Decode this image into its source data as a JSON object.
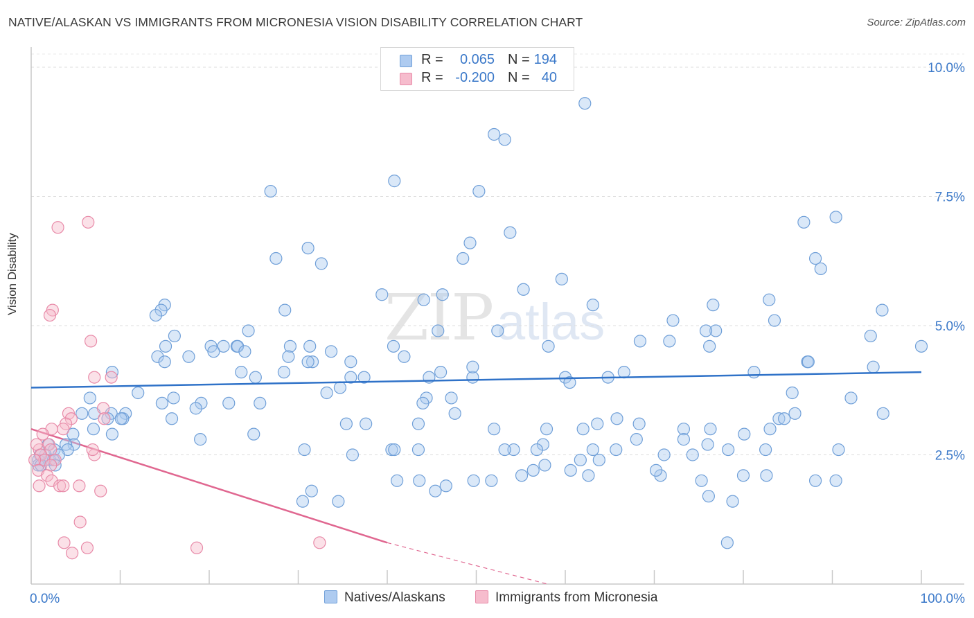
{
  "title": "NATIVE/ALASKAN VS IMMIGRANTS FROM MICRONESIA VISION DISABILITY CORRELATION CHART",
  "source": "Source: ZipAtlas.com",
  "watermark": {
    "zip": "ZIP",
    "atlas": "atlas"
  },
  "legend": {
    "rows": [
      {
        "r_label": "R =",
        "r_value": "0.065",
        "n_label": "N =",
        "n_value": "194"
      },
      {
        "r_label": "R =",
        "r_value": "-0.200",
        "n_label": "N =",
        "n_value": "40"
      }
    ]
  },
  "colors": {
    "blue_fill": "#aecbf0",
    "blue_stroke": "#6f9fd8",
    "blue_line": "#2f72c8",
    "pink_fill": "#f6bccd",
    "pink_stroke": "#e88aa8",
    "pink_line": "#e06790",
    "grid": "#dcdcdc",
    "tick_label": "#3a78c9"
  },
  "chart_data": {
    "type": "scatter",
    "title": "NATIVE/ALASKAN VS IMMIGRANTS FROM MICRONESIA VISION DISABILITY CORRELATION CHART",
    "xlabel": "",
    "ylabel": "Vision Disability",
    "xlim": [
      0,
      100
    ],
    "ylim": [
      0,
      10.5
    ],
    "x_tick_labels": [
      "0.0%",
      "100.0%"
    ],
    "y_ticks": [
      2.5,
      5.0,
      7.5,
      10.0
    ],
    "y_tick_labels": [
      "2.5%",
      "5.0%",
      "7.5%",
      "10.0%"
    ],
    "grid": "horizontal dashed",
    "legend_position": "bottom",
    "series": [
      {
        "name": "Natives/Alaskans",
        "R": 0.065,
        "N": 194,
        "trend": {
          "x": [
            0,
            100
          ],
          "y": [
            3.8,
            4.1
          ],
          "style": "solid"
        },
        "points": [
          [
            62.2,
            9.3
          ],
          [
            52.0,
            8.7
          ],
          [
            53.2,
            8.6
          ],
          [
            40.8,
            7.8
          ],
          [
            26.9,
            7.6
          ],
          [
            50.3,
            7.6
          ],
          [
            90.4,
            7.1
          ],
          [
            86.8,
            7.0
          ],
          [
            49.3,
            6.6
          ],
          [
            53.8,
            6.8
          ],
          [
            31.1,
            6.5
          ],
          [
            27.5,
            6.3
          ],
          [
            48.5,
            6.3
          ],
          [
            32.6,
            6.2
          ],
          [
            88.1,
            6.3
          ],
          [
            88.7,
            6.1
          ],
          [
            59.6,
            5.9
          ],
          [
            55.3,
            5.7
          ],
          [
            39.4,
            5.6
          ],
          [
            46.2,
            5.6
          ],
          [
            63.1,
            5.4
          ],
          [
            76.6,
            5.4
          ],
          [
            44.1,
            5.5
          ],
          [
            82.9,
            5.5
          ],
          [
            95.6,
            5.3
          ],
          [
            15.0,
            5.4
          ],
          [
            14.6,
            5.3
          ],
          [
            14.0,
            5.2
          ],
          [
            72.1,
            5.1
          ],
          [
            83.5,
            5.1
          ],
          [
            28.5,
            5.3
          ],
          [
            76.9,
            4.9
          ],
          [
            52.4,
            4.9
          ],
          [
            45.7,
            4.9
          ],
          [
            16.1,
            4.8
          ],
          [
            24.4,
            4.9
          ],
          [
            76.2,
            4.6
          ],
          [
            71.7,
            4.7
          ],
          [
            68.4,
            4.7
          ],
          [
            94.3,
            4.8
          ],
          [
            58.1,
            4.6
          ],
          [
            75.8,
            4.9
          ],
          [
            15.1,
            4.6
          ],
          [
            20.2,
            4.6
          ],
          [
            23.1,
            4.6
          ],
          [
            29.1,
            4.6
          ],
          [
            31.3,
            4.6
          ],
          [
            23.2,
            4.6
          ],
          [
            33.7,
            4.5
          ],
          [
            14.2,
            4.4
          ],
          [
            21.6,
            4.6
          ],
          [
            40.7,
            4.6
          ],
          [
            31.6,
            4.3
          ],
          [
            31.1,
            4.3
          ],
          [
            20.5,
            4.5
          ],
          [
            17.7,
            4.4
          ],
          [
            41.9,
            4.4
          ],
          [
            35.9,
            4.3
          ],
          [
            87.2,
            4.3
          ],
          [
            24.0,
            4.5
          ],
          [
            15.0,
            4.3
          ],
          [
            28.9,
            4.4
          ],
          [
            94.6,
            4.2
          ],
          [
            46.0,
            4.1
          ],
          [
            87.3,
            4.3
          ],
          [
            49.6,
            4.0
          ],
          [
            60.0,
            4.0
          ],
          [
            64.8,
            4.0
          ],
          [
            81.2,
            4.1
          ],
          [
            28.4,
            4.1
          ],
          [
            66.6,
            4.1
          ],
          [
            49.6,
            4.2
          ],
          [
            37.4,
            4.0
          ],
          [
            23.6,
            4.1
          ],
          [
            25.2,
            4.0
          ],
          [
            35.9,
            4.0
          ],
          [
            44.7,
            4.0
          ],
          [
            9.1,
            4.1
          ],
          [
            12.0,
            3.7
          ],
          [
            34.7,
            3.8
          ],
          [
            60.5,
            3.9
          ],
          [
            33.2,
            3.7
          ],
          [
            85.5,
            3.7
          ],
          [
            44.4,
            3.6
          ],
          [
            47.2,
            3.6
          ],
          [
            44.0,
            3.5
          ],
          [
            92.1,
            3.6
          ],
          [
            22.2,
            3.5
          ],
          [
            16.0,
            3.6
          ],
          [
            14.7,
            3.5
          ],
          [
            19.1,
            3.5
          ],
          [
            18.5,
            3.4
          ],
          [
            25.7,
            3.5
          ],
          [
            6.6,
            3.6
          ],
          [
            10.6,
            3.3
          ],
          [
            9.0,
            3.3
          ],
          [
            47.6,
            3.3
          ],
          [
            5.7,
            3.3
          ],
          [
            37.6,
            3.1
          ],
          [
            43.5,
            3.1
          ],
          [
            7.1,
            3.3
          ],
          [
            10.3,
            3.2
          ],
          [
            57.9,
            3.0
          ],
          [
            65.8,
            3.2
          ],
          [
            84.0,
            3.2
          ],
          [
            62.0,
            3.0
          ],
          [
            76.3,
            3.0
          ],
          [
            83.0,
            3.0
          ],
          [
            8.6,
            3.2
          ],
          [
            15.8,
            3.2
          ],
          [
            35.4,
            3.1
          ],
          [
            85.8,
            3.3
          ],
          [
            25.0,
            2.9
          ],
          [
            52.0,
            3.0
          ],
          [
            68.3,
            3.1
          ],
          [
            73.3,
            3.0
          ],
          [
            68.0,
            2.8
          ],
          [
            80.1,
            2.9
          ],
          [
            63.6,
            3.1
          ],
          [
            84.6,
            3.2
          ],
          [
            95.7,
            3.3
          ],
          [
            7.0,
            3.0
          ],
          [
            4.7,
            2.9
          ],
          [
            9.1,
            2.9
          ],
          [
            19.0,
            2.8
          ],
          [
            73.3,
            2.8
          ],
          [
            43.5,
            2.6
          ],
          [
            54.2,
            2.6
          ],
          [
            65.7,
            2.6
          ],
          [
            76.0,
            2.7
          ],
          [
            57.5,
            2.7
          ],
          [
            78.3,
            2.6
          ],
          [
            10.1,
            3.2
          ],
          [
            56.8,
            2.6
          ],
          [
            36.1,
            2.5
          ],
          [
            40.5,
            2.6
          ],
          [
            63.1,
            2.6
          ],
          [
            40.8,
            2.6
          ],
          [
            63.8,
            2.4
          ],
          [
            82.5,
            2.6
          ],
          [
            53.2,
            2.6
          ],
          [
            30.7,
            2.6
          ],
          [
            61.7,
            2.4
          ],
          [
            71.1,
            2.5
          ],
          [
            74.3,
            2.5
          ],
          [
            90.7,
            2.6
          ],
          [
            4.8,
            2.7
          ],
          [
            3.9,
            2.7
          ],
          [
            1.9,
            2.7
          ],
          [
            4.1,
            2.6
          ],
          [
            2.6,
            2.6
          ],
          [
            1.6,
            2.5
          ],
          [
            3.1,
            2.5
          ],
          [
            1.0,
            2.5
          ],
          [
            2.1,
            2.4
          ],
          [
            0.8,
            2.4
          ],
          [
            1.5,
            2.4
          ],
          [
            2.5,
            2.4
          ],
          [
            0.8,
            2.3
          ],
          [
            1.1,
            2.3
          ],
          [
            2.7,
            2.3
          ],
          [
            56.4,
            2.2
          ],
          [
            57.7,
            2.3
          ],
          [
            49.7,
            2.0
          ],
          [
            60.6,
            2.2
          ],
          [
            51.7,
            2.0
          ],
          [
            55.1,
            2.1
          ],
          [
            41.1,
            2.0
          ],
          [
            62.6,
            2.1
          ],
          [
            70.7,
            2.1
          ],
          [
            90.4,
            2.0
          ],
          [
            70.2,
            2.2
          ],
          [
            80.0,
            2.1
          ],
          [
            82.6,
            2.1
          ],
          [
            88.1,
            2.0
          ],
          [
            76.1,
            1.7
          ],
          [
            78.8,
            1.6
          ],
          [
            75.3,
            2.0
          ],
          [
            31.5,
            1.8
          ],
          [
            34.5,
            1.6
          ],
          [
            30.5,
            1.6
          ],
          [
            43.6,
            2.0
          ],
          [
            45.4,
            1.8
          ],
          [
            46.6,
            1.9
          ],
          [
            100.0,
            4.6
          ],
          [
            78.2,
            0.8
          ]
        ]
      },
      {
        "name": "Immigrants from Micronesia",
        "R": -0.2,
        "N": 40,
        "trend": {
          "x": [
            0,
            40
          ],
          "y": [
            3.0,
            0.8
          ],
          "dashed_extension_to": [
            58,
            0.0
          ]
        },
        "points": [
          [
            6.4,
            7.0
          ],
          [
            3.0,
            6.9
          ],
          [
            2.4,
            5.3
          ],
          [
            2.1,
            5.2
          ],
          [
            6.7,
            4.7
          ],
          [
            7.1,
            4.0
          ],
          [
            9.0,
            4.0
          ],
          [
            8.1,
            3.4
          ],
          [
            4.2,
            3.3
          ],
          [
            4.5,
            3.2
          ],
          [
            8.2,
            3.2
          ],
          [
            3.9,
            3.1
          ],
          [
            2.3,
            3.0
          ],
          [
            3.6,
            3.0
          ],
          [
            1.3,
            2.9
          ],
          [
            2.0,
            2.7
          ],
          [
            0.9,
            2.6
          ],
          [
            0.6,
            2.7
          ],
          [
            2.2,
            2.6
          ],
          [
            7.1,
            2.5
          ],
          [
            6.9,
            2.6
          ],
          [
            1.1,
            2.5
          ],
          [
            1.5,
            2.4
          ],
          [
            2.7,
            2.4
          ],
          [
            0.4,
            2.4
          ],
          [
            2.2,
            2.3
          ],
          [
            0.8,
            2.2
          ],
          [
            1.8,
            2.1
          ],
          [
            2.3,
            2.0
          ],
          [
            3.2,
            1.9
          ],
          [
            5.4,
            1.9
          ],
          [
            0.9,
            1.9
          ],
          [
            3.6,
            1.9
          ],
          [
            7.8,
            1.8
          ],
          [
            5.5,
            1.2
          ],
          [
            3.7,
            0.8
          ],
          [
            6.3,
            0.7
          ],
          [
            4.6,
            0.6
          ],
          [
            18.6,
            0.7
          ],
          [
            32.4,
            0.8
          ]
        ]
      }
    ]
  }
}
